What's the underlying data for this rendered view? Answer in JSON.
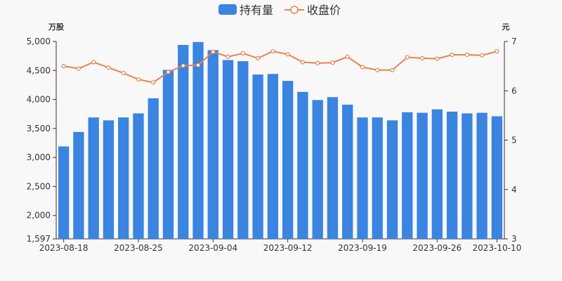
{
  "chart_data": {
    "type": "bar",
    "legend": {
      "position": "top-center"
    },
    "series": [
      {
        "name": "持有量",
        "type": "bar",
        "axis": "left",
        "color": "#3a84e2",
        "values": [
          3190,
          3440,
          3690,
          3640,
          3690,
          3760,
          4020,
          4510,
          4940,
          4990,
          4850,
          4680,
          4660,
          4430,
          4440,
          4320,
          4130,
          3990,
          4040,
          3910,
          3690,
          3690,
          3640,
          3780,
          3770,
          3830,
          3790,
          3760,
          3770,
          3710
        ]
      },
      {
        "name": "收盘价",
        "type": "line",
        "axis": "right",
        "color": "#e8834d",
        "values": [
          6.5,
          6.45,
          6.58,
          6.47,
          6.36,
          6.23,
          6.17,
          6.38,
          6.51,
          6.52,
          6.79,
          6.69,
          6.76,
          6.66,
          6.8,
          6.74,
          6.58,
          6.56,
          6.57,
          6.69,
          6.48,
          6.42,
          6.42,
          6.68,
          6.66,
          6.65,
          6.73,
          6.73,
          6.72,
          6.8
        ]
      }
    ],
    "x_labels": [
      "2023-08-18",
      "2023-08-25",
      "2023-09-04",
      "2023-09-12",
      "2023-09-19",
      "2023-09-26",
      "2023-10-10"
    ],
    "x_label_indices": [
      0,
      5,
      10,
      15,
      20,
      25,
      29
    ],
    "y_left": {
      "unit": "万股",
      "min": 1597,
      "max": 5000,
      "ticks": [
        {
          "value": 1597,
          "label": "1,597"
        },
        {
          "value": 2000,
          "label": "2,000"
        },
        {
          "value": 2500,
          "label": "2,500"
        },
        {
          "value": 3000,
          "label": "3,000"
        },
        {
          "value": 3500,
          "label": "3,500"
        },
        {
          "value": 4000,
          "label": "4,000"
        },
        {
          "value": 4500,
          "label": "4,500"
        },
        {
          "value": 5000,
          "label": "5,000"
        }
      ]
    },
    "y_right": {
      "unit": "元",
      "min": 3,
      "max": 7,
      "ticks": [
        {
          "value": 3,
          "label": "3"
        },
        {
          "value": 4,
          "label": "4"
        },
        {
          "value": 5,
          "label": "5"
        },
        {
          "value": 6,
          "label": "6"
        },
        {
          "value": 7,
          "label": "7"
        }
      ]
    },
    "colors": {
      "axis": "#333333",
      "background": "#f8f8f8"
    }
  }
}
